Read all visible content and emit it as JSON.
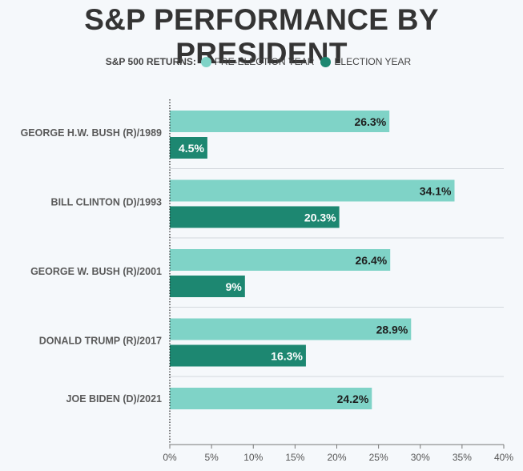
{
  "colors": {
    "pre": "#7fd3c7",
    "election": "#1d8771",
    "label_dark": "#1e1e1e",
    "label_light": "#ffffff"
  },
  "legend": {
    "title": "S&P 500 RETURNS:",
    "items": [
      "PRE-ELECTION YEAR",
      "ELECTION YEAR"
    ]
  },
  "chart_data": {
    "type": "bar",
    "orientation": "horizontal",
    "title": "S&P PERFORMANCE BY PRESIDENT",
    "categories": [
      "GEORGE H.W. BUSH (R)/1989",
      "BILL CLINTON (D)/1993",
      "GEORGE W. BUSH (R)/2001",
      "DONALD TRUMP (R)/2017",
      "JOE BIDEN (D)/2021"
    ],
    "series": [
      {
        "name": "PRE-ELECTION YEAR",
        "values": [
          26.3,
          34.1,
          26.4,
          28.9,
          24.2
        ],
        "labels": [
          "26.3%",
          "34.1%",
          "26.4%",
          "28.9%",
          "24.2%"
        ]
      },
      {
        "name": "ELECTION YEAR",
        "values": [
          4.5,
          20.3,
          9,
          16.3,
          null
        ],
        "labels": [
          "4.5%",
          "20.3%",
          "9%",
          "16.3%",
          ""
        ]
      }
    ],
    "xlim": [
      0,
      40
    ],
    "xticks": [
      0,
      5,
      10,
      15,
      20,
      25,
      30,
      35,
      40
    ],
    "xtick_labels": [
      "0%",
      "5%",
      "10%",
      "15%",
      "20%",
      "25%",
      "30%",
      "35%",
      "40%"
    ],
    "legend_position": "top-center",
    "grid": false
  }
}
